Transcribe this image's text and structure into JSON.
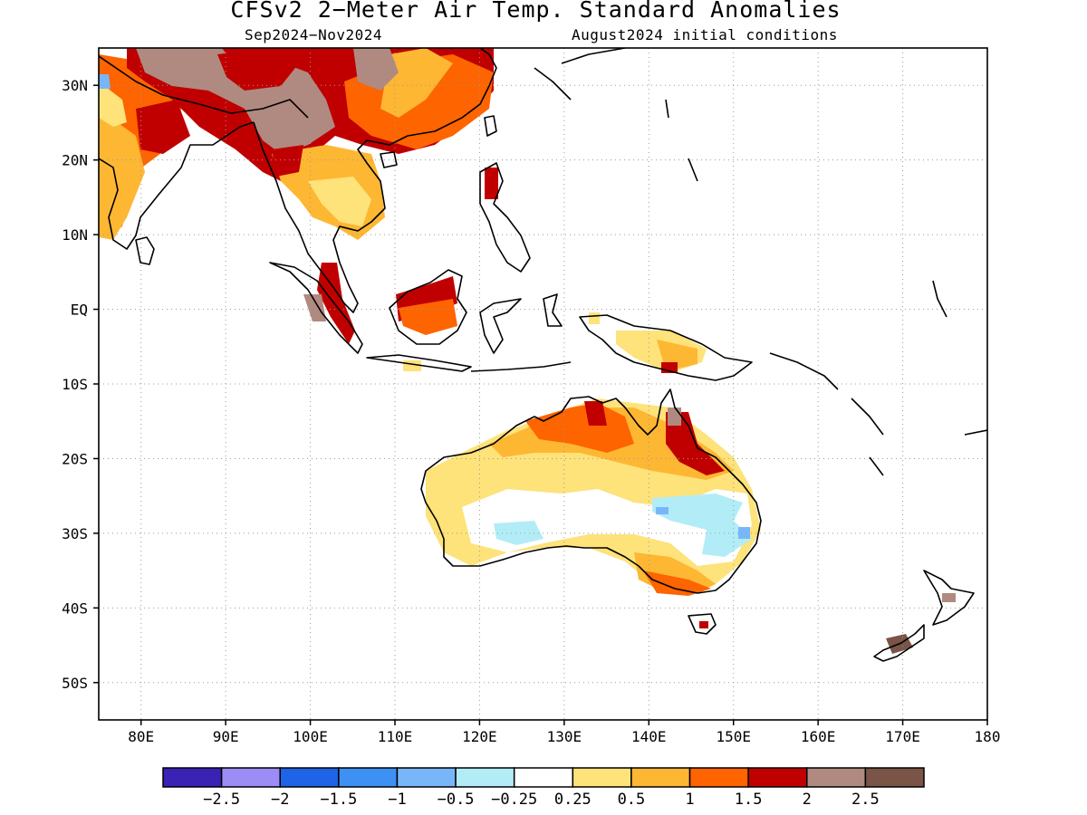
{
  "title": "CFSv2 2−Meter Air Temp. Standard Anomalies",
  "subtitle_left": "Sep2024−Nov2024",
  "subtitle_right": "August2024 initial conditions",
  "axes": {
    "lon_range": [
      75,
      180
    ],
    "lat_range": [
      -55,
      35
    ],
    "lon_ticks": [
      80,
      90,
      100,
      110,
      120,
      130,
      140,
      150,
      160,
      170,
      180
    ],
    "lon_labels": [
      "80E",
      "90E",
      "100E",
      "110E",
      "120E",
      "130E",
      "140E",
      "150E",
      "160E",
      "170E",
      "180"
    ],
    "lat_ticks": [
      30,
      20,
      10,
      0,
      -10,
      -20,
      -30,
      -40,
      -50
    ],
    "lat_labels": [
      "30N",
      "20N",
      "10N",
      "EQ",
      "10S",
      "20S",
      "30S",
      "40S",
      "50S"
    ],
    "grid": "dotted"
  },
  "colorbar": {
    "colors": [
      "#3a22b4",
      "#9c8cf6",
      "#1f64e6",
      "#3c91f3",
      "#78b6f9",
      "#b2edf7",
      "#ffffff",
      "#fee27a",
      "#feb733",
      "#fe6400",
      "#c00000",
      "#b08a80",
      "#7a5446"
    ],
    "labels": [
      "−2.5",
      "−2",
      "−1.5",
      "−1",
      "−0.5",
      "−0.25",
      "0.25",
      "0.5",
      "1",
      "1.5",
      "2",
      "2.5"
    ]
  },
  "regions": [
    {
      "name": "china-dark-red",
      "level": "2",
      "color": "#c00000"
    },
    {
      "name": "tibet-brown",
      "level": "2.5",
      "color": "#b08a80"
    },
    {
      "name": "india-orange",
      "level": "1",
      "color": "#feb733"
    },
    {
      "name": "indochina-yellow",
      "level": "0.5",
      "color": "#fee27a"
    },
    {
      "name": "borneo-red",
      "level": "2",
      "color": "#c00000"
    },
    {
      "name": "australia-north-orange",
      "level": "1",
      "color": "#feb733"
    },
    {
      "name": "australia-center-white",
      "level": "0.25",
      "color": "#ffffff"
    },
    {
      "name": "australia-cyan",
      "level": "-0.25",
      "color": "#b2edf7"
    },
    {
      "name": "new-zealand-brown",
      "level": "2.5",
      "color": "#7a5446"
    }
  ]
}
